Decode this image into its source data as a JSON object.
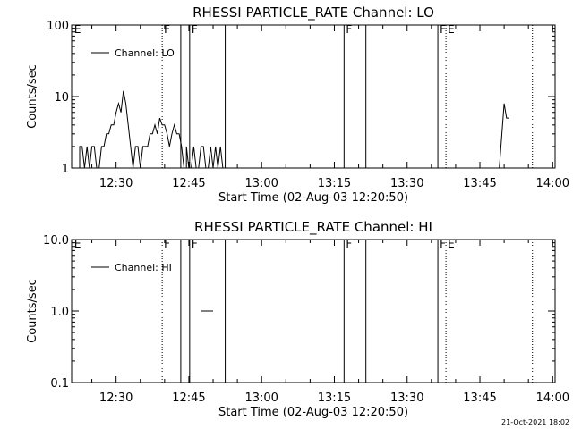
{
  "chart_data": [
    {
      "type": "line",
      "title": "RHESSI PARTICLE_RATE Channel: LO",
      "xlabel": "Start Time (02-Aug-03 12:20:50)",
      "ylabel": "Counts/sec",
      "yscale": "log",
      "ylim": [
        1,
        100
      ],
      "xlim": [
        "12:20:50",
        "14:00:30"
      ],
      "yticks": [
        {
          "value": 1,
          "label": "1"
        },
        {
          "value": 10,
          "label": "10"
        },
        {
          "value": 100,
          "label": "100"
        }
      ],
      "xticks": [
        "12:30",
        "12:45",
        "13:00",
        "13:15",
        "13:30",
        "13:45",
        "14:00"
      ],
      "legend": {
        "position": "top-left",
        "entries": [
          "Channel: LO"
        ]
      },
      "series": [
        {
          "name": "Channel: LO",
          "segments": [
            {
              "x": [
                "12:22:30",
                "12:22:30",
                "12:23:00",
                "12:23:30",
                "12:24:00",
                "12:24:30",
                "12:25:00",
                "12:25:30",
                "12:26:00",
                "12:26:30",
                "12:27:00",
                "12:27:30",
                "12:28:00",
                "12:28:30",
                "12:29:00",
                "12:29:30",
                "12:30:00",
                "12:30:30",
                "12:31:00",
                "12:31:30",
                "12:32:00",
                "12:32:30",
                "12:33:00",
                "12:33:30",
                "12:34:00",
                "12:34:30",
                "12:35:00",
                "12:35:30",
                "12:36:00",
                "12:36:30",
                "12:37:00",
                "12:37:30",
                "12:38:00",
                "12:38:30",
                "12:39:00",
                "12:39:30",
                "12:40:00",
                "12:40:30",
                "12:41:00",
                "12:41:30",
                "12:42:00",
                "12:42:30",
                "12:43:00",
                "12:43:30",
                "12:44:00"
              ],
              "y": [
                1,
                2,
                2,
                1,
                2,
                1,
                2,
                2,
                1,
                1,
                2,
                2,
                3,
                3,
                4,
                4,
                6,
                8,
                6,
                12,
                8,
                4,
                2,
                1,
                2,
                2,
                1,
                2,
                2,
                2,
                3,
                3,
                4,
                3,
                5,
                4,
                4,
                3,
                2,
                3,
                4,
                3,
                3,
                2,
                1
              ]
            },
            {
              "x": [
                "12:44:30",
                "12:44:30",
                "12:45:00",
                "12:45:30",
                "12:46:00",
                "12:46:30",
                "12:47:00",
                "12:47:30",
                "12:48:00",
                "12:48:30",
                "12:49:00",
                "12:49:30",
                "12:50:00",
                "12:50:30",
                "12:51:00",
                "12:51:30",
                "12:52:00"
              ],
              "y": [
                1,
                2,
                1,
                1,
                2,
                1,
                1,
                2,
                2,
                1,
                1,
                2,
                1,
                2,
                1,
                2,
                1
              ]
            },
            {
              "x": [
                "13:49:00",
                "13:50:00",
                "13:50:30",
                "13:51:00"
              ],
              "y": [
                1,
                8,
                5,
                5
              ]
            }
          ]
        }
      ],
      "flags": [
        {
          "time": "12:21:00",
          "label": "E",
          "line": "none"
        },
        {
          "time": "12:39:30",
          "label": "F",
          "line": "dotted"
        },
        {
          "time": "12:43:20",
          "label": "",
          "line": "solid"
        },
        {
          "time": "12:45:10",
          "label": "F",
          "line": "solid"
        },
        {
          "time": "12:52:30",
          "label": "",
          "line": "solid"
        },
        {
          "time": "13:17:00",
          "label": "F",
          "line": "solid"
        },
        {
          "time": "13:21:30",
          "label": "",
          "line": "solid"
        },
        {
          "time": "13:36:20",
          "label": "F",
          "line": "solid"
        },
        {
          "time": "13:38:00",
          "label": "E",
          "line": "dotted"
        },
        {
          "time": "13:55:50",
          "label": "",
          "line": "dotted"
        }
      ]
    },
    {
      "type": "line",
      "title": "RHESSI PARTICLE_RATE Channel: HI",
      "xlabel": "Start Time (02-Aug-03 12:20:50)",
      "ylabel": "Counts/sec",
      "yscale": "log",
      "ylim": [
        0.1,
        10
      ],
      "xlim": [
        "12:20:50",
        "14:00:30"
      ],
      "yticks": [
        {
          "value": 0.1,
          "label": "0.1"
        },
        {
          "value": 1,
          "label": "1.0"
        },
        {
          "value": 10,
          "label": "10.0"
        }
      ],
      "xticks": [
        "12:30",
        "12:45",
        "13:00",
        "13:15",
        "13:30",
        "13:45",
        "14:00"
      ],
      "legend": {
        "position": "top-left",
        "entries": [
          "Channel: HI"
        ]
      },
      "series": [
        {
          "name": "Channel: HI",
          "segments": [
            {
              "x": [
                "12:47:30",
                "12:50:00"
              ],
              "y": [
                1,
                1
              ]
            }
          ]
        }
      ],
      "flags": [
        {
          "time": "12:21:00",
          "label": "E",
          "line": "none"
        },
        {
          "time": "12:39:30",
          "label": "F",
          "line": "dotted"
        },
        {
          "time": "12:43:20",
          "label": "",
          "line": "solid"
        },
        {
          "time": "12:45:10",
          "label": "F",
          "line": "solid"
        },
        {
          "time": "12:52:30",
          "label": "",
          "line": "solid"
        },
        {
          "time": "13:17:00",
          "label": "F",
          "line": "solid"
        },
        {
          "time": "13:21:30",
          "label": "",
          "line": "solid"
        },
        {
          "time": "13:36:20",
          "label": "F",
          "line": "solid"
        },
        {
          "time": "13:38:00",
          "label": "E",
          "line": "dotted"
        },
        {
          "time": "13:55:50",
          "label": "",
          "line": "dotted"
        }
      ]
    }
  ],
  "footer": {
    "timestamp": "21-Oct-2021 18:02"
  }
}
